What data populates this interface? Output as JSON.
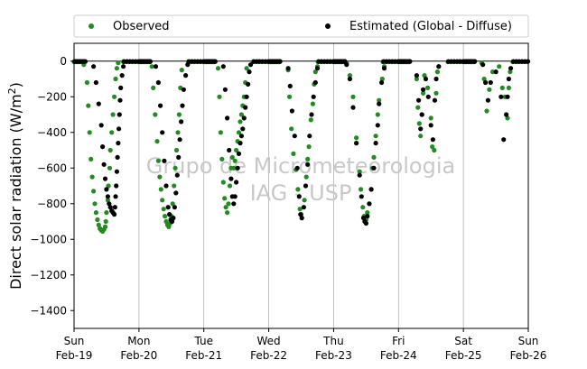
{
  "chart_data": {
    "type": "scatter",
    "ylabel": "Direct solar radiation (W/m²)",
    "ylabel_main": "Direct solar radiation (W/m",
    "ylabel_sup": "2",
    "ylabel_close": ")",
    "xlim": [
      0,
      7
    ],
    "ylim": [
      -1500,
      100
    ],
    "yticks": [
      0,
      -200,
      -400,
      -600,
      -800,
      -1000,
      -1200,
      -1400
    ],
    "xticks": [
      {
        "x": 0,
        "day": "Sun",
        "date": "Feb-19"
      },
      {
        "x": 1,
        "day": "Mon",
        "date": "Feb-20"
      },
      {
        "x": 2,
        "day": "Tue",
        "date": "Feb-21"
      },
      {
        "x": 3,
        "day": "Wed",
        "date": "Feb-22"
      },
      {
        "x": 4,
        "day": "Thu",
        "date": "Feb-23"
      },
      {
        "x": 5,
        "day": "Fri",
        "date": "Feb-24"
      },
      {
        "x": 6,
        "day": "Sat",
        "date": "Feb-25"
      },
      {
        "x": 7,
        "day": "Sun",
        "date": "Feb-26"
      }
    ],
    "vertical_grid": true,
    "zero_line": true,
    "legend_position": "top",
    "watermark": [
      "Grupo de Micrometeorologia",
      "IAG - USP"
    ],
    "series": [
      {
        "name": "Observed",
        "color": "#228b22",
        "points": [
          [
            0.15,
            -20
          ],
          [
            0.2,
            -120
          ],
          [
            0.22,
            -250
          ],
          [
            0.24,
            -400
          ],
          [
            0.26,
            -550
          ],
          [
            0.28,
            -650
          ],
          [
            0.3,
            -730
          ],
          [
            0.32,
            -800
          ],
          [
            0.34,
            -850
          ],
          [
            0.36,
            -890
          ],
          [
            0.38,
            -920
          ],
          [
            0.4,
            -940
          ],
          [
            0.42,
            -950
          ],
          [
            0.44,
            -955
          ],
          [
            0.46,
            -945
          ],
          [
            0.48,
            -930
          ],
          [
            0.49,
            -900
          ],
          [
            0.5,
            -850
          ],
          [
            0.52,
            -780
          ],
          [
            0.53,
            -700
          ],
          [
            0.55,
            -600
          ],
          [
            0.56,
            -500
          ],
          [
            0.58,
            -400
          ],
          [
            0.6,
            -300
          ],
          [
            0.62,
            -200
          ],
          [
            0.64,
            -100
          ],
          [
            0.66,
            -40
          ],
          [
            0.68,
            -10
          ],
          [
            1.2,
            -30
          ],
          [
            1.22,
            -150
          ],
          [
            1.25,
            -300
          ],
          [
            1.28,
            -450
          ],
          [
            1.3,
            -560
          ],
          [
            1.32,
            -650
          ],
          [
            1.34,
            -720
          ],
          [
            1.36,
            -780
          ],
          [
            1.38,
            -830
          ],
          [
            1.4,
            -870
          ],
          [
            1.42,
            -900
          ],
          [
            1.44,
            -920
          ],
          [
            1.46,
            -930
          ],
          [
            1.48,
            -910
          ],
          [
            1.5,
            -870
          ],
          [
            1.52,
            -800
          ],
          [
            1.54,
            -700
          ],
          [
            1.56,
            -600
          ],
          [
            1.58,
            -500
          ],
          [
            1.6,
            -400
          ],
          [
            1.62,
            -300
          ],
          [
            1.64,
            -150
          ],
          [
            1.66,
            -50
          ],
          [
            2.22,
            -40
          ],
          [
            2.24,
            -200
          ],
          [
            2.26,
            -400
          ],
          [
            2.28,
            -550
          ],
          [
            2.3,
            -680
          ],
          [
            2.32,
            -770
          ],
          [
            2.34,
            -820
          ],
          [
            2.36,
            -850
          ],
          [
            2.38,
            -800
          ],
          [
            2.4,
            -700
          ],
          [
            2.42,
            -600
          ],
          [
            2.44,
            -540
          ],
          [
            2.46,
            -600
          ],
          [
            2.48,
            -560
          ],
          [
            2.5,
            -500
          ],
          [
            2.52,
            -450
          ],
          [
            2.54,
            -400
          ],
          [
            2.56,
            -340
          ],
          [
            2.58,
            -300
          ],
          [
            2.6,
            -250
          ],
          [
            2.62,
            -200
          ],
          [
            2.64,
            -120
          ],
          [
            2.66,
            -40
          ],
          [
            3.3,
            -50
          ],
          [
            3.32,
            -200
          ],
          [
            3.35,
            -380
          ],
          [
            3.38,
            -520
          ],
          [
            3.42,
            -610
          ],
          [
            3.45,
            -720
          ],
          [
            3.48,
            -830
          ],
          [
            3.5,
            -860
          ],
          [
            3.55,
            -780
          ],
          [
            3.58,
            -650
          ],
          [
            3.6,
            -550
          ],
          [
            3.62,
            -480
          ],
          [
            3.65,
            -330
          ],
          [
            3.68,
            -240
          ],
          [
            3.7,
            -130
          ],
          [
            3.72,
            -60
          ],
          [
            3.75,
            -30
          ],
          [
            4.2,
            -10
          ],
          [
            4.25,
            -80
          ],
          [
            4.3,
            -200
          ],
          [
            4.35,
            -430
          ],
          [
            4.4,
            -620
          ],
          [
            4.42,
            -720
          ],
          [
            4.45,
            -820
          ],
          [
            4.47,
            -870
          ],
          [
            4.5,
            -890
          ],
          [
            4.52,
            -850
          ],
          [
            4.55,
            -800
          ],
          [
            4.58,
            -720
          ],
          [
            4.6,
            -600
          ],
          [
            4.62,
            -540
          ],
          [
            4.65,
            -420
          ],
          [
            4.68,
            -300
          ],
          [
            4.7,
            -220
          ],
          [
            4.75,
            -100
          ],
          [
            4.78,
            -30
          ],
          [
            5.28,
            -100
          ],
          [
            5.3,
            -260
          ],
          [
            5.32,
            -350
          ],
          [
            5.34,
            -420
          ],
          [
            5.36,
            -300
          ],
          [
            5.38,
            -180
          ],
          [
            5.4,
            -80
          ],
          [
            5.45,
            -150
          ],
          [
            5.5,
            -320
          ],
          [
            5.52,
            -480
          ],
          [
            5.55,
            -500
          ],
          [
            5.58,
            -180
          ],
          [
            5.6,
            -60
          ],
          [
            5.62,
            -30
          ],
          [
            6.28,
            -10
          ],
          [
            6.32,
            -100
          ],
          [
            6.36,
            -280
          ],
          [
            6.4,
            -160
          ],
          [
            6.45,
            -60
          ],
          [
            6.55,
            -30
          ],
          [
            6.6,
            -150
          ],
          [
            6.64,
            -200
          ],
          [
            6.68,
            -320
          ],
          [
            6.7,
            -150
          ],
          [
            6.72,
            -60
          ]
        ]
      },
      {
        "name": "Estimated (Global - Diffuse)",
        "color": "#000000",
        "points": [
          [
            0.3,
            -30
          ],
          [
            0.34,
            -120
          ],
          [
            0.38,
            -240
          ],
          [
            0.42,
            -360
          ],
          [
            0.44,
            -480
          ],
          [
            0.46,
            -580
          ],
          [
            0.48,
            -660
          ],
          [
            0.5,
            -720
          ],
          [
            0.52,
            -760
          ],
          [
            0.54,
            -800
          ],
          [
            0.56,
            -820
          ],
          [
            0.58,
            -840
          ],
          [
            0.6,
            -850
          ],
          [
            0.62,
            -860
          ],
          [
            0.63,
            -820
          ],
          [
            0.64,
            -760
          ],
          [
            0.65,
            -700
          ],
          [
            0.66,
            -620
          ],
          [
            0.67,
            -540
          ],
          [
            0.68,
            -460
          ],
          [
            0.69,
            -380
          ],
          [
            0.7,
            -300
          ],
          [
            0.71,
            -220
          ],
          [
            0.72,
            -150
          ],
          [
            0.74,
            -80
          ],
          [
            0.76,
            -30
          ],
          [
            1.26,
            -30
          ],
          [
            1.3,
            -120
          ],
          [
            1.33,
            -250
          ],
          [
            1.36,
            -400
          ],
          [
            1.39,
            -560
          ],
          [
            1.42,
            -700
          ],
          [
            1.45,
            -820
          ],
          [
            1.47,
            -860
          ],
          [
            1.49,
            -890
          ],
          [
            1.51,
            -900
          ],
          [
            1.53,
            -880
          ],
          [
            1.55,
            -820
          ],
          [
            1.57,
            -740
          ],
          [
            1.59,
            -640
          ],
          [
            1.61,
            -540
          ],
          [
            1.63,
            -440
          ],
          [
            1.65,
            -340
          ],
          [
            1.67,
            -250
          ],
          [
            1.69,
            -160
          ],
          [
            1.72,
            -80
          ],
          [
            1.75,
            -20
          ],
          [
            2.3,
            -30
          ],
          [
            2.33,
            -160
          ],
          [
            2.36,
            -320
          ],
          [
            2.39,
            -500
          ],
          [
            2.42,
            -660
          ],
          [
            2.44,
            -760
          ],
          [
            2.46,
            -800
          ],
          [
            2.48,
            -760
          ],
          [
            2.5,
            -680
          ],
          [
            2.52,
            -600
          ],
          [
            2.54,
            -520
          ],
          [
            2.56,
            -460
          ],
          [
            2.58,
            -420
          ],
          [
            2.6,
            -380
          ],
          [
            2.62,
            -320
          ],
          [
            2.64,
            -260
          ],
          [
            2.66,
            -200
          ],
          [
            2.68,
            -130
          ],
          [
            2.7,
            -60
          ],
          [
            2.72,
            -20
          ],
          [
            3.3,
            -40
          ],
          [
            3.33,
            -140
          ],
          [
            3.36,
            -280
          ],
          [
            3.4,
            -420
          ],
          [
            3.44,
            -600
          ],
          [
            3.47,
            -760
          ],
          [
            3.49,
            -860
          ],
          [
            3.51,
            -880
          ],
          [
            3.54,
            -820
          ],
          [
            3.57,
            -700
          ],
          [
            3.6,
            -580
          ],
          [
            3.63,
            -420
          ],
          [
            3.66,
            -300
          ],
          [
            3.69,
            -200
          ],
          [
            3.72,
            -120
          ],
          [
            3.75,
            -40
          ],
          [
            4.2,
            -20
          ],
          [
            4.25,
            -100
          ],
          [
            4.3,
            -260
          ],
          [
            4.35,
            -460
          ],
          [
            4.4,
            -640
          ],
          [
            4.43,
            -760
          ],
          [
            4.46,
            -880
          ],
          [
            4.48,
            -900
          ],
          [
            4.5,
            -910
          ],
          [
            4.52,
            -870
          ],
          [
            4.55,
            -800
          ],
          [
            4.58,
            -720
          ],
          [
            4.62,
            -600
          ],
          [
            4.65,
            -460
          ],
          [
            4.68,
            -360
          ],
          [
            4.7,
            -240
          ],
          [
            4.74,
            -120
          ],
          [
            4.78,
            -40
          ],
          [
            5.28,
            -80
          ],
          [
            5.31,
            -220
          ],
          [
            5.34,
            -380
          ],
          [
            5.36,
            -300
          ],
          [
            5.38,
            -160
          ],
          [
            5.42,
            -100
          ],
          [
            5.46,
            -200
          ],
          [
            5.5,
            -360
          ],
          [
            5.53,
            -440
          ],
          [
            5.56,
            -220
          ],
          [
            5.58,
            -100
          ],
          [
            5.62,
            -30
          ],
          [
            6.3,
            -20
          ],
          [
            6.34,
            -120
          ],
          [
            6.38,
            -220
          ],
          [
            6.42,
            -120
          ],
          [
            6.5,
            -60
          ],
          [
            6.58,
            -200
          ],
          [
            6.62,
            -440
          ],
          [
            6.66,
            -300
          ],
          [
            6.68,
            -200
          ],
          [
            6.7,
            -100
          ],
          [
            6.73,
            -40
          ]
        ]
      }
    ]
  }
}
